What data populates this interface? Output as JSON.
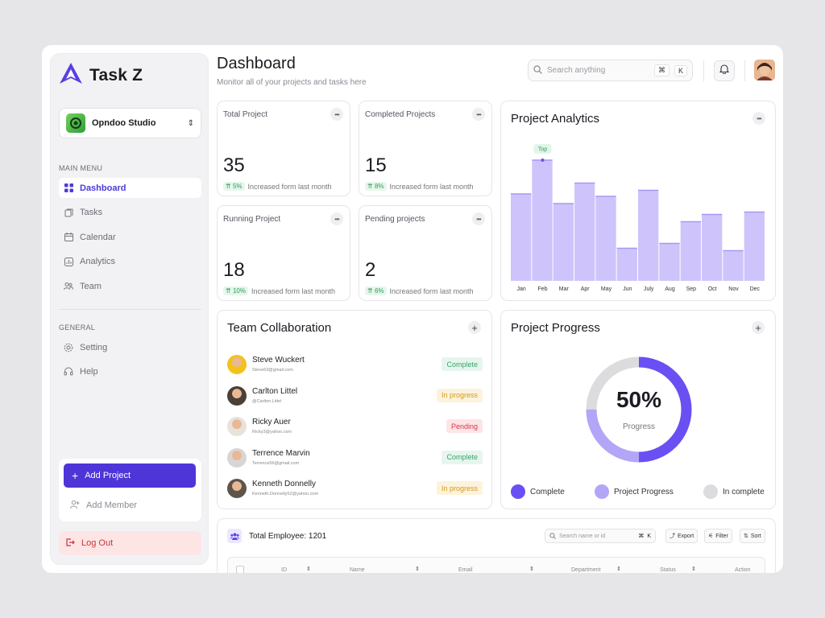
{
  "sidebar": {
    "brand": "Task Z",
    "workspace": "Opndoo Studio",
    "main_menu_label": "MAIN MENU",
    "main_menu": [
      {
        "label": "Dashboard",
        "icon": "grid-icon"
      },
      {
        "label": "Tasks",
        "icon": "tasks-icon"
      },
      {
        "label": "Calendar",
        "icon": "calendar-icon"
      },
      {
        "label": "Analytics",
        "icon": "analytics-icon"
      },
      {
        "label": "Team",
        "icon": "team-icon"
      }
    ],
    "general_label": "GENERAL",
    "general_menu": [
      {
        "label": "Setting",
        "icon": "gear-icon"
      },
      {
        "label": "Help",
        "icon": "headset-icon"
      }
    ],
    "add_project": "Add Project",
    "add_member": "Add Member",
    "logout": "Log Out"
  },
  "header": {
    "title": "Dashboard",
    "subtitle": "Monitor all of your projects and tasks here",
    "search_placeholder": "Search anything",
    "kbd_cmd": "⌘",
    "kbd_k": "K"
  },
  "stats": [
    {
      "label": "Total Project",
      "value": "35",
      "pct": "5%",
      "note": "Increased form last month"
    },
    {
      "label": "Completed Projects",
      "value": "15",
      "pct": "8%",
      "note": "Increased form last month"
    },
    {
      "label": "Running Project",
      "value": "18",
      "pct": "10%",
      "note": "Increased form last month"
    },
    {
      "label": "Pending projects",
      "value": "2",
      "pct": "6%",
      "note": "Increased form last month"
    }
  ],
  "analytics": {
    "title": "Project Analytics",
    "top_label": "Top"
  },
  "chart_data": {
    "type": "bar",
    "categories": [
      "Jan",
      "Feb",
      "Mar",
      "Apr",
      "May",
      "Jun",
      "July",
      "Aug",
      "Sep",
      "Oct",
      "Nov",
      "Dec"
    ],
    "values": [
      72,
      100,
      64,
      81,
      70,
      27,
      75,
      31,
      49,
      55,
      25,
      57
    ],
    "ylim": [
      0,
      100
    ],
    "grid": false,
    "bar_color": "#cec4fb",
    "bar_stroke": "#a998f3"
  },
  "team": {
    "title": "Team Collaboration",
    "members": [
      {
        "name": "Steve Wuckert",
        "email": "Steve63@gmail.com",
        "status": "Complete",
        "avatar_color": "#f2c21b"
      },
      {
        "name": "Carlton Littel",
        "email": "@Carlton.Littel",
        "status": "In progress",
        "avatar_color": "#4a4038"
      },
      {
        "name": "Ricky Auer",
        "email": "Ricky3@yahoo.com",
        "status": "Pending",
        "avatar_color": "#e8e2dc"
      },
      {
        "name": "Terrence Marvin",
        "email": "Terrence56@gmail.com",
        "status": "Complete",
        "avatar_color": "#d8d6d4"
      },
      {
        "name": "Kenneth Donnelly",
        "email": "Kenneth.Donnelly52@yahoo.com",
        "status": "In progress",
        "avatar_color": "#5d544c"
      }
    ]
  },
  "status_styles": {
    "Complete": {
      "bg": "#e6f6ee",
      "fg": "#37a46a"
    },
    "In progress": {
      "bg": "#fdf3dc",
      "fg": "#d19a1e"
    },
    "Pending": {
      "bg": "#fde4e6",
      "fg": "#d23b4b"
    }
  },
  "progress": {
    "title": "Project Progress",
    "value_label": "50%",
    "sub_label": "Progress",
    "complete_fraction": 0.5,
    "in_progress_fraction": 0.25,
    "legend": [
      {
        "label": "Complete",
        "color": "#6a4ff3"
      },
      {
        "label": "Project Progress",
        "color": "#b3a6f8"
      },
      {
        "label": "In complete",
        "color": "#dcdcdf"
      }
    ]
  },
  "employees": {
    "title": "Total Employee: 1201",
    "search_placeholder": "Search name or id",
    "export": "Export",
    "filter": "Filter",
    "sort": "Sort",
    "columns": [
      "ID",
      "Name",
      "Email",
      "Department",
      "Status",
      "Action"
    ]
  }
}
